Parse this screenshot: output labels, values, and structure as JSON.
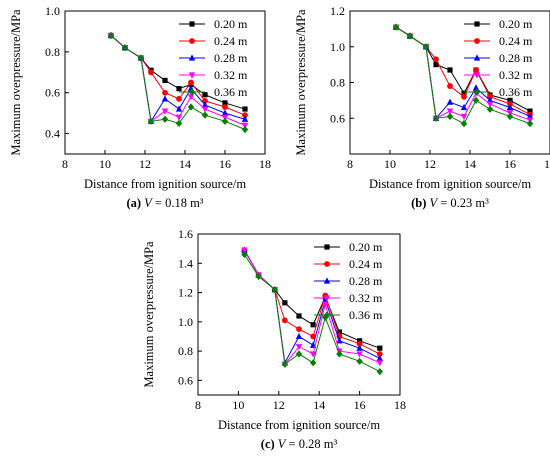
{
  "chart_data": [
    {
      "type": "line",
      "caption": {
        "letter": "(a)",
        "rest": " = 0.18 m³"
      },
      "xlabel": "Distance from ignition source/m",
      "ylabel": "Maximum overpressure/MPa",
      "xlim": [
        8,
        18
      ],
      "ylim": [
        0.3,
        1.0
      ],
      "xticks": [
        8,
        10,
        12,
        14,
        16,
        18
      ],
      "yticks": [
        0.4,
        0.6,
        0.8,
        1.0
      ],
      "ytick_labels": [
        "0.4",
        "0.6",
        "0.8",
        "1.0"
      ],
      "x": [
        10.3,
        11.0,
        11.8,
        12.3,
        13.0,
        13.7,
        14.3,
        15.0,
        16.0,
        17.0
      ],
      "legend_position": "top-right",
      "series": [
        {
          "name": "0.20 m",
          "color": "#000000",
          "marker": "square",
          "values": [
            0.88,
            0.82,
            0.77,
            0.71,
            0.66,
            0.62,
            0.64,
            0.59,
            0.55,
            0.52
          ]
        },
        {
          "name": "0.24 m",
          "color": "#ff0000",
          "marker": "circle",
          "values": [
            0.88,
            0.82,
            0.77,
            0.7,
            0.6,
            0.57,
            0.65,
            0.56,
            0.53,
            0.49
          ]
        },
        {
          "name": "0.28 m",
          "color": "#0000ff",
          "marker": "triangle-up",
          "values": [
            0.88,
            0.82,
            0.77,
            0.46,
            0.57,
            0.52,
            0.62,
            0.54,
            0.5,
            0.47
          ]
        },
        {
          "name": "0.32 m",
          "color": "#ff00ff",
          "marker": "triangle-down",
          "values": [
            0.88,
            0.82,
            0.77,
            0.46,
            0.51,
            0.48,
            0.58,
            0.52,
            0.48,
            0.44
          ]
        },
        {
          "name": "0.36 m",
          "color": "#008000",
          "marker": "diamond",
          "values": [
            0.88,
            0.82,
            0.77,
            0.46,
            0.47,
            0.45,
            0.53,
            0.49,
            0.46,
            0.42
          ]
        }
      ]
    },
    {
      "type": "line",
      "caption": {
        "letter": "(b)",
        "rest": " = 0.23 m³"
      },
      "xlabel": "Distance from ignition source/m",
      "ylabel": "Maximum overpressure/MPa",
      "xlim": [
        8,
        18
      ],
      "ylim": [
        0.4,
        1.2
      ],
      "xticks": [
        8,
        10,
        12,
        14,
        16,
        18
      ],
      "yticks": [
        0.6,
        0.8,
        1.0,
        1.2
      ],
      "ytick_labels": [
        "0.6",
        "0.8",
        "1.0",
        "1.2"
      ],
      "x": [
        10.3,
        11.0,
        11.8,
        12.3,
        13.0,
        13.7,
        14.3,
        15.0,
        16.0,
        17.0
      ],
      "legend_position": "top-right",
      "series": [
        {
          "name": "0.20 m",
          "color": "#000000",
          "marker": "square",
          "values": [
            1.11,
            1.06,
            1.0,
            0.9,
            0.87,
            0.74,
            0.87,
            0.73,
            0.7,
            0.64
          ]
        },
        {
          "name": "0.24 m",
          "color": "#ff0000",
          "marker": "circle",
          "values": [
            1.11,
            1.06,
            1.0,
            0.93,
            0.78,
            0.72,
            0.87,
            0.72,
            0.68,
            0.62
          ]
        },
        {
          "name": "0.28 m",
          "color": "#0000ff",
          "marker": "triangle-up",
          "values": [
            1.11,
            1.06,
            1.0,
            0.6,
            0.69,
            0.66,
            0.77,
            0.7,
            0.66,
            0.61
          ]
        },
        {
          "name": "0.32 m",
          "color": "#ff00ff",
          "marker": "triangle-down",
          "values": [
            1.11,
            1.06,
            1.0,
            0.6,
            0.64,
            0.61,
            0.74,
            0.68,
            0.63,
            0.59
          ]
        },
        {
          "name": "0.36 m",
          "color": "#008000",
          "marker": "diamond",
          "values": [
            1.11,
            1.06,
            1.0,
            0.6,
            0.61,
            0.57,
            0.7,
            0.65,
            0.61,
            0.57
          ]
        }
      ]
    },
    {
      "type": "line",
      "caption": {
        "letter": "(c)",
        "rest": " = 0.28 m³"
      },
      "xlabel": "Distance from ignition source/m",
      "ylabel": "Maximum overpressure/MPa",
      "xlim": [
        8,
        18
      ],
      "ylim": [
        0.5,
        1.6
      ],
      "xticks": [
        8,
        10,
        12,
        14,
        16,
        18
      ],
      "yticks": [
        0.6,
        0.8,
        1.0,
        1.2,
        1.4,
        1.6
      ],
      "ytick_labels": [
        "0.6",
        "0.8",
        "1.0",
        "1.2",
        "1.4",
        "1.6"
      ],
      "x": [
        10.3,
        11.0,
        11.8,
        12.3,
        13.0,
        13.7,
        14.3,
        15.0,
        16.0,
        17.0
      ],
      "legend_position": "top-right",
      "series": [
        {
          "name": "0.20 m",
          "color": "#000000",
          "marker": "square",
          "values": [
            1.49,
            1.32,
            1.22,
            1.13,
            1.04,
            0.98,
            1.17,
            0.93,
            0.87,
            0.82
          ]
        },
        {
          "name": "0.24 m",
          "color": "#ff0000",
          "marker": "circle",
          "values": [
            1.49,
            1.32,
            1.22,
            1.01,
            0.95,
            0.9,
            1.18,
            0.9,
            0.85,
            0.78
          ]
        },
        {
          "name": "0.28 m",
          "color": "#0000ff",
          "marker": "triangle-up",
          "values": [
            1.49,
            1.32,
            1.22,
            0.72,
            0.9,
            0.84,
            1.15,
            0.87,
            0.82,
            0.75
          ]
        },
        {
          "name": "0.32 m",
          "color": "#ff00ff",
          "marker": "triangle-down",
          "values": [
            1.49,
            1.32,
            1.22,
            0.71,
            0.83,
            0.78,
            1.12,
            0.8,
            0.78,
            0.72
          ]
        },
        {
          "name": "0.36 m",
          "color": "#008000",
          "marker": "diamond",
          "values": [
            1.46,
            1.31,
            1.22,
            0.71,
            0.78,
            0.72,
            1.03,
            0.78,
            0.73,
            0.66
          ]
        }
      ]
    }
  ]
}
